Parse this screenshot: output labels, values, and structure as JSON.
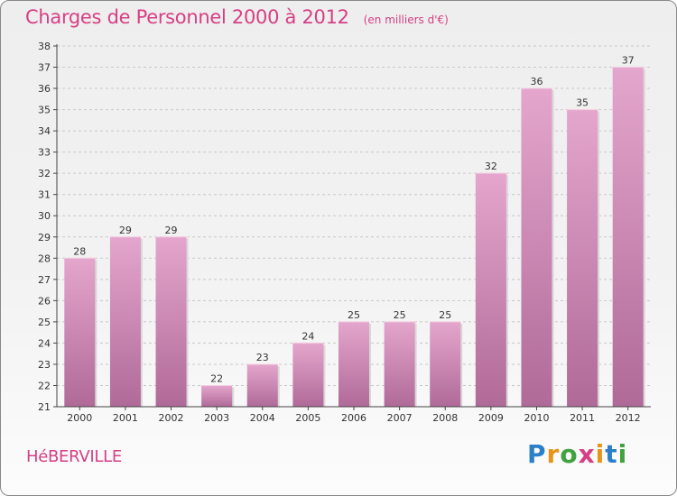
{
  "header": {
    "title": "Charges de Personnel 2000 à 2012",
    "subtitle": "(en milliers d'€)"
  },
  "footer": {
    "commune": "HéBERVILLE",
    "brand": "Proxiti",
    "brand_letters": [
      {
        "char": "P",
        "color": "#2a7fc8"
      },
      {
        "char": "r",
        "color": "#e8941c"
      },
      {
        "char": "o",
        "color": "#3ea23e"
      },
      {
        "char": "x",
        "color": "#d63f84"
      },
      {
        "char": "i",
        "color": "#e8941c"
      },
      {
        "char": "t",
        "color": "#2a7fc8"
      },
      {
        "char": "i",
        "color": "#3ea23e"
      }
    ]
  },
  "colors": {
    "accent": "#d63f84",
    "bar_top": "#e4a6cc",
    "bar_bottom": "#b06a98",
    "axis": "#444444"
  },
  "chart_data": {
    "type": "bar",
    "title": "Charges de Personnel 2000 à 2012",
    "subtitle": "(en milliers d'€)",
    "xlabel": "",
    "ylabel": "",
    "categories": [
      "2000",
      "2001",
      "2002",
      "2003",
      "2004",
      "2005",
      "2006",
      "2007",
      "2008",
      "2009",
      "2010",
      "2011",
      "2012"
    ],
    "values": [
      28,
      29,
      29,
      22,
      23,
      24,
      25,
      25,
      25,
      32,
      36,
      35,
      37
    ],
    "ylim": [
      21,
      38
    ],
    "yticks": [
      21,
      22,
      23,
      24,
      25,
      26,
      27,
      28,
      29,
      30,
      31,
      32,
      33,
      34,
      35,
      36,
      37,
      38
    ],
    "grid": true,
    "data_labels": true
  }
}
